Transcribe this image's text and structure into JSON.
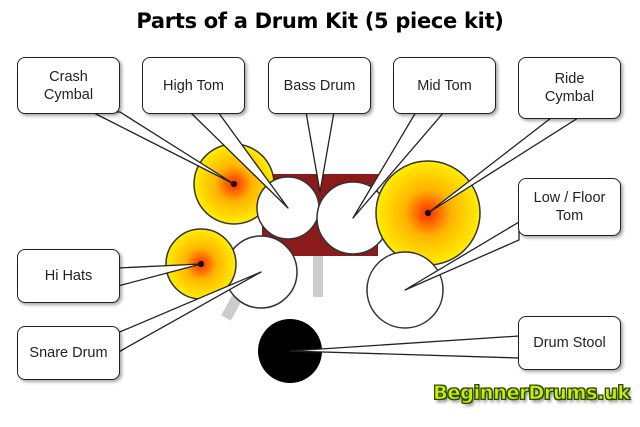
{
  "title": "Parts of a Drum Kit (5 piece kit)",
  "labels": {
    "crash_cymbal": "Crash\nCymbal",
    "high_tom": "High Tom",
    "bass_drum": "Bass Drum",
    "mid_tom": "Mid Tom",
    "ride_cymbal": "Ride\nCymbal",
    "low_floor_tom": "Low / Floor\nTom",
    "hi_hats": "Hi Hats",
    "snare_drum": "Snare Drum",
    "drum_stool": "Drum Stool"
  },
  "logo": "BeginnerDrums.uk",
  "colors": {
    "cymbal_center": "#ff2a00",
    "cymbal_mid": "#ffb400",
    "cymbal_edge": "#ffee00",
    "bass_drum": "#8b1a1a",
    "stand": "#cccccc",
    "drum_head": "#ffffff",
    "stool": "#000000",
    "logo_fill": "#c8f000"
  }
}
